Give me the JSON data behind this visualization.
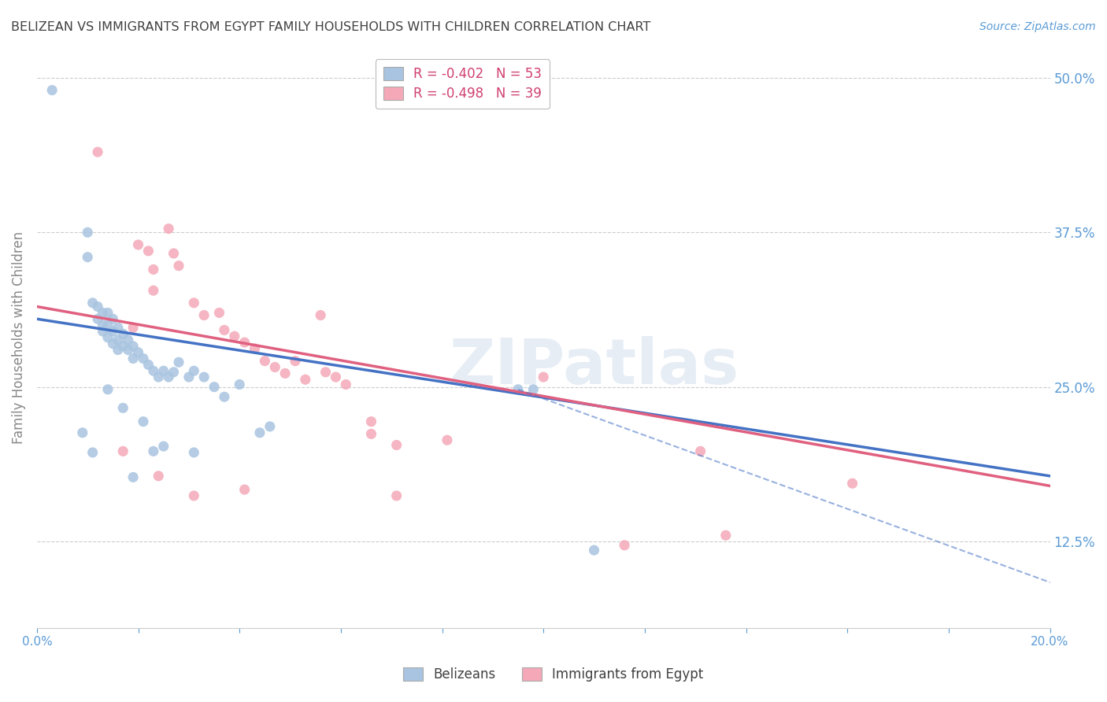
{
  "title": "BELIZEAN VS IMMIGRANTS FROM EGYPT FAMILY HOUSEHOLDS WITH CHILDREN CORRELATION CHART",
  "source": "Source: ZipAtlas.com",
  "ylabel": "Family Households with Children",
  "xlabel": "",
  "xlim": [
    0.0,
    0.2
  ],
  "ylim": [
    0.055,
    0.525
  ],
  "xticks": [
    0.0,
    0.02,
    0.04,
    0.06,
    0.08,
    0.1,
    0.12,
    0.14,
    0.16,
    0.18,
    0.2
  ],
  "ytick_positions": [
    0.125,
    0.25,
    0.375,
    0.5
  ],
  "ytick_labels": [
    "12.5%",
    "25.0%",
    "37.5%",
    "50.0%"
  ],
  "watermark": "ZIPatlas",
  "legend_blue_label": "R = -0.402   N = 53",
  "legend_pink_label": "R = -0.498   N = 39",
  "blue_color": "#a8c4e0",
  "pink_color": "#f4a8b8",
  "blue_line_color": "#4472c4",
  "pink_line_color": "#e06080",
  "blue_scatter": [
    [
      0.003,
      0.49
    ],
    [
      0.01,
      0.375
    ],
    [
      0.01,
      0.355
    ],
    [
      0.011,
      0.318
    ],
    [
      0.012,
      0.315
    ],
    [
      0.012,
      0.305
    ],
    [
      0.013,
      0.31
    ],
    [
      0.013,
      0.3
    ],
    [
      0.013,
      0.295
    ],
    [
      0.014,
      0.31
    ],
    [
      0.014,
      0.3
    ],
    [
      0.014,
      0.29
    ],
    [
      0.015,
      0.305
    ],
    [
      0.015,
      0.295
    ],
    [
      0.015,
      0.285
    ],
    [
      0.016,
      0.298
    ],
    [
      0.016,
      0.288
    ],
    [
      0.016,
      0.28
    ],
    [
      0.017,
      0.293
    ],
    [
      0.017,
      0.283
    ],
    [
      0.018,
      0.288
    ],
    [
      0.018,
      0.28
    ],
    [
      0.019,
      0.283
    ],
    [
      0.019,
      0.273
    ],
    [
      0.02,
      0.278
    ],
    [
      0.021,
      0.273
    ],
    [
      0.022,
      0.268
    ],
    [
      0.023,
      0.263
    ],
    [
      0.024,
      0.258
    ],
    [
      0.025,
      0.263
    ],
    [
      0.026,
      0.258
    ],
    [
      0.027,
      0.262
    ],
    [
      0.028,
      0.27
    ],
    [
      0.03,
      0.258
    ],
    [
      0.031,
      0.263
    ],
    [
      0.033,
      0.258
    ],
    [
      0.035,
      0.25
    ],
    [
      0.037,
      0.242
    ],
    [
      0.04,
      0.252
    ],
    [
      0.044,
      0.213
    ],
    [
      0.046,
      0.218
    ],
    [
      0.014,
      0.248
    ],
    [
      0.017,
      0.233
    ],
    [
      0.021,
      0.222
    ],
    [
      0.023,
      0.198
    ],
    [
      0.025,
      0.202
    ],
    [
      0.009,
      0.213
    ],
    [
      0.011,
      0.197
    ],
    [
      0.019,
      0.177
    ],
    [
      0.031,
      0.197
    ],
    [
      0.095,
      0.248
    ],
    [
      0.098,
      0.248
    ],
    [
      0.11,
      0.118
    ]
  ],
  "pink_scatter": [
    [
      0.012,
      0.44
    ],
    [
      0.02,
      0.365
    ],
    [
      0.022,
      0.36
    ],
    [
      0.023,
      0.345
    ],
    [
      0.026,
      0.378
    ],
    [
      0.027,
      0.358
    ],
    [
      0.028,
      0.348
    ],
    [
      0.031,
      0.318
    ],
    [
      0.033,
      0.308
    ],
    [
      0.036,
      0.31
    ],
    [
      0.037,
      0.296
    ],
    [
      0.039,
      0.291
    ],
    [
      0.041,
      0.286
    ],
    [
      0.043,
      0.281
    ],
    [
      0.045,
      0.271
    ],
    [
      0.047,
      0.266
    ],
    [
      0.049,
      0.261
    ],
    [
      0.051,
      0.271
    ],
    [
      0.053,
      0.256
    ],
    [
      0.056,
      0.308
    ],
    [
      0.057,
      0.262
    ],
    [
      0.059,
      0.258
    ],
    [
      0.061,
      0.252
    ],
    [
      0.066,
      0.222
    ],
    [
      0.066,
      0.212
    ],
    [
      0.071,
      0.203
    ],
    [
      0.017,
      0.198
    ],
    [
      0.024,
      0.178
    ],
    [
      0.041,
      0.167
    ],
    [
      0.031,
      0.162
    ],
    [
      0.081,
      0.207
    ],
    [
      0.1,
      0.258
    ],
    [
      0.131,
      0.198
    ],
    [
      0.161,
      0.172
    ],
    [
      0.019,
      0.298
    ],
    [
      0.023,
      0.328
    ],
    [
      0.071,
      0.162
    ],
    [
      0.136,
      0.13
    ],
    [
      0.116,
      0.122
    ]
  ],
  "blue_trend": [
    0.0,
    0.2,
    0.305,
    0.178
  ],
  "pink_trend": [
    0.0,
    0.2,
    0.315,
    0.17
  ],
  "blue_dashed": [
    0.095,
    0.2,
    0.248,
    0.092
  ],
  "background_color": "#ffffff",
  "grid_color": "#cccccc",
  "tick_color": "#5b9bd5",
  "title_color": "#404040",
  "axis_color": "#cccccc"
}
